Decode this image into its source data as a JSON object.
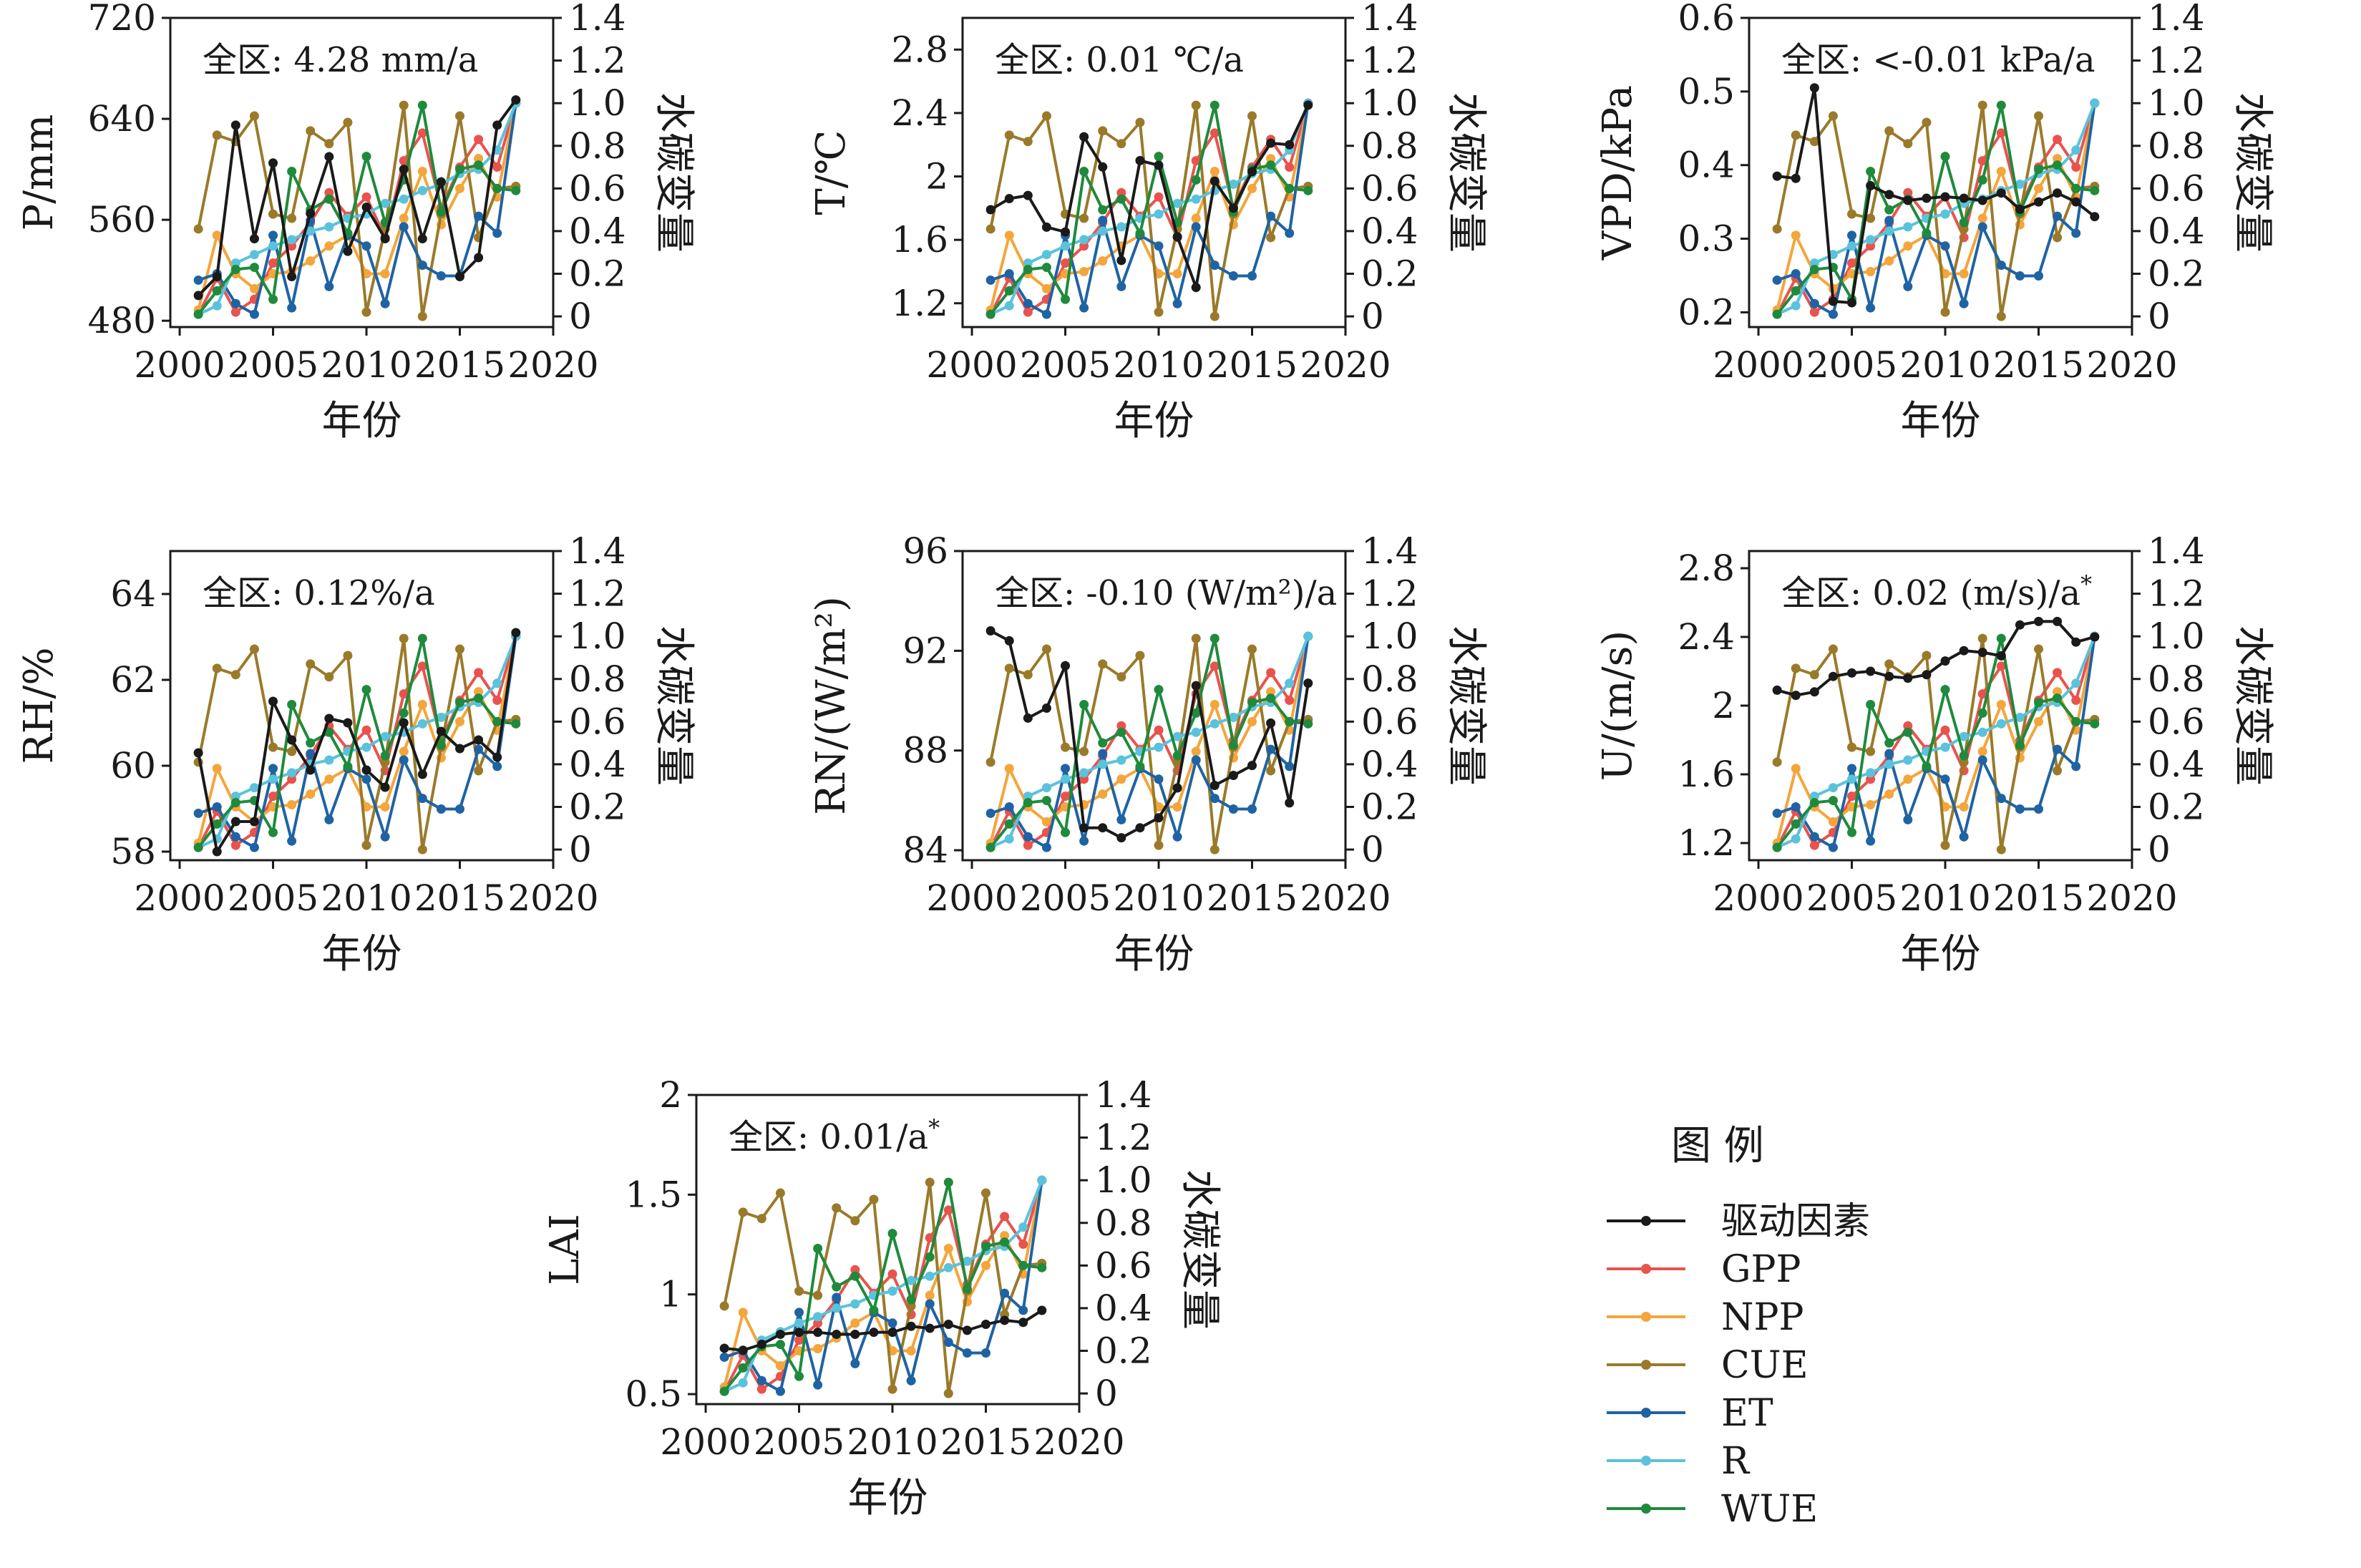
{
  "legend": {
    "title": "图 例",
    "items": [
      {
        "key": "driver",
        "label": "驱动因素",
        "color": "#1a1a1a"
      },
      {
        "key": "GPP",
        "label": "GPP",
        "color": "#e8534e"
      },
      {
        "key": "NPP",
        "label": "NPP",
        "color": "#f4a53b"
      },
      {
        "key": "CUE",
        "label": "CUE",
        "color": "#9a7a2a"
      },
      {
        "key": "ET",
        "label": "ET",
        "color": "#1f63a3"
      },
      {
        "key": "R",
        "label": "R",
        "color": "#5bc2dc"
      },
      {
        "key": "WUE",
        "label": "WUE",
        "color": "#1f8a3c"
      }
    ]
  },
  "water_carbon_series": {
    "years": [
      2001,
      2002,
      2003,
      2004,
      2005,
      2006,
      2007,
      2008,
      2009,
      2010,
      2011,
      2012,
      2013,
      2014,
      2015,
      2016,
      2017,
      2018
    ],
    "GPP": [
      0.01,
      0.18,
      0.02,
      0.08,
      0.25,
      0.33,
      0.44,
      0.58,
      0.47,
      0.56,
      0.37,
      0.73,
      0.86,
      0.51,
      0.7,
      0.83,
      0.7,
      1.0
    ],
    "NPP": [
      0.03,
      0.38,
      0.2,
      0.13,
      0.2,
      0.21,
      0.26,
      0.33,
      0.38,
      0.2,
      0.2,
      0.46,
      0.68,
      0.43,
      0.6,
      0.74,
      0.56,
      1.0
    ],
    "CUE": [
      0.41,
      0.85,
      0.82,
      0.94,
      0.48,
      0.46,
      0.87,
      0.81,
      0.91,
      0.02,
      0.41,
      0.99,
      0.0,
      0.48,
      0.94,
      0.37,
      0.6,
      0.61
    ],
    "ET": [
      0.17,
      0.2,
      0.06,
      0.01,
      0.38,
      0.04,
      0.45,
      0.14,
      0.38,
      0.33,
      0.06,
      0.42,
      0.24,
      0.19,
      0.19,
      0.47,
      0.39,
      1.0
    ],
    "R": [
      0.01,
      0.05,
      0.25,
      0.29,
      0.33,
      0.36,
      0.4,
      0.42,
      0.46,
      0.48,
      0.53,
      0.55,
      0.59,
      0.62,
      0.67,
      0.69,
      0.78,
      1.0
    ],
    "WUE": [
      0.01,
      0.12,
      0.22,
      0.23,
      0.08,
      0.68,
      0.5,
      0.55,
      0.39,
      0.75,
      0.44,
      0.64,
      0.99,
      0.49,
      0.69,
      0.71,
      0.6,
      0.59
    ]
  },
  "panels": [
    {
      "id": "P",
      "annotation": "全区: 4.28 mm/a",
      "ylabel": "P/mm",
      "ylim": [
        475,
        720
      ],
      "yticks": [
        480,
        560,
        640,
        720
      ],
      "driver": [
        500,
        515,
        635,
        545,
        605,
        515,
        565,
        610,
        535,
        570,
        545,
        600,
        545,
        590,
        515,
        530,
        635,
        655
      ]
    },
    {
      "id": "T",
      "annotation": "全区: 0.01 ℃/a",
      "ylabel": "T/℃",
      "ylim": [
        1.05,
        3.0
      ],
      "yticks": [
        1.2,
        1.6,
        2.0,
        2.4,
        2.8
      ],
      "driver": [
        1.79,
        1.86,
        1.88,
        1.68,
        1.65,
        2.25,
        2.06,
        1.47,
        2.1,
        2.07,
        1.62,
        1.3,
        1.97,
        1.8,
        2.03,
        2.21,
        2.2,
        2.45
      ]
    },
    {
      "id": "VPD",
      "annotation": "全区: <-0.01 kPa/a",
      "ylabel": "VPD/kPa",
      "ylim": [
        0.18,
        0.6
      ],
      "yticks": [
        0.2,
        0.3,
        0.4,
        0.5,
        0.6
      ],
      "driver": [
        0.385,
        0.382,
        0.505,
        0.215,
        0.213,
        0.372,
        0.36,
        0.352,
        0.355,
        0.357,
        0.355,
        0.352,
        0.362,
        0.34,
        0.35,
        0.362,
        0.35,
        0.33
      ]
    },
    {
      "id": "RH",
      "annotation": "全区: 0.12%/a",
      "ylabel": "RH/%",
      "ylim": [
        57.8,
        65.0
      ],
      "yticks": [
        58,
        60,
        62,
        64
      ],
      "driver": [
        60.3,
        58.0,
        58.7,
        58.7,
        61.5,
        60.6,
        59.9,
        61.1,
        61.0,
        59.9,
        59.5,
        61.0,
        59.8,
        60.8,
        60.4,
        60.6,
        60.2,
        63.1
      ]
    },
    {
      "id": "RN",
      "annotation": "全区: -0.10 (W/m²)/a",
      "ylabel": "RN/(W/m²)",
      "ylim": [
        83.6,
        96.0
      ],
      "yticks": [
        84,
        88,
        92,
        96
      ],
      "driver": [
        92.8,
        92.4,
        89.3,
        89.7,
        91.4,
        84.9,
        84.9,
        84.5,
        84.9,
        85.3,
        86.5,
        90.6,
        86.6,
        87.0,
        87.4,
        89.1,
        85.9,
        90.7
      ]
    },
    {
      "id": "U",
      "annotation": "全区: 0.02 (m/s)/a",
      "annotation_sup": "*",
      "ylabel": "U/(m/s)",
      "ylim": [
        1.1,
        2.9
      ],
      "yticks": [
        1.2,
        1.6,
        2.0,
        2.4,
        2.8
      ],
      "driver": [
        2.09,
        2.06,
        2.08,
        2.17,
        2.19,
        2.2,
        2.17,
        2.16,
        2.18,
        2.26,
        2.32,
        2.31,
        2.29,
        2.47,
        2.49,
        2.49,
        2.37,
        2.4
      ]
    },
    {
      "id": "LAI",
      "annotation": "全区: 0.01/a",
      "annotation_sup": "*",
      "ylabel": "LAI",
      "ylim": [
        0.45,
        2.0
      ],
      "yticks": [
        0.5,
        1.0,
        1.5,
        2.0
      ],
      "driver": [
        0.73,
        0.72,
        0.75,
        0.8,
        0.81,
        0.81,
        0.8,
        0.8,
        0.81,
        0.81,
        0.84,
        0.83,
        0.85,
        0.82,
        0.85,
        0.87,
        0.86,
        0.92
      ]
    }
  ],
  "shared_axes": {
    "xlabel": "年份",
    "xlim": [
      1999.5,
      2020
    ],
    "xticks": [
      2000,
      2005,
      2010,
      2015,
      2020
    ],
    "y2label": "水碳变量",
    "y2lim": [
      -0.05,
      1.4
    ],
    "y2ticks": [
      0,
      0.2,
      0.4,
      0.6,
      0.8,
      1.0,
      1.2,
      1.4
    ],
    "y2ticklabels": [
      "0",
      "0.2",
      "0.4",
      "0.6",
      "0.8",
      "1.0",
      "1.2",
      "1.4"
    ]
  },
  "chart_data": {
    "type": "line",
    "subplots": 7,
    "x": [
      2001,
      2002,
      2003,
      2004,
      2005,
      2006,
      2007,
      2008,
      2009,
      2010,
      2011,
      2012,
      2013,
      2014,
      2015,
      2016,
      2017,
      2018
    ],
    "xlabel": "年份",
    "y2label": "水碳变量",
    "legend_placement": "bottom-right"
  }
}
